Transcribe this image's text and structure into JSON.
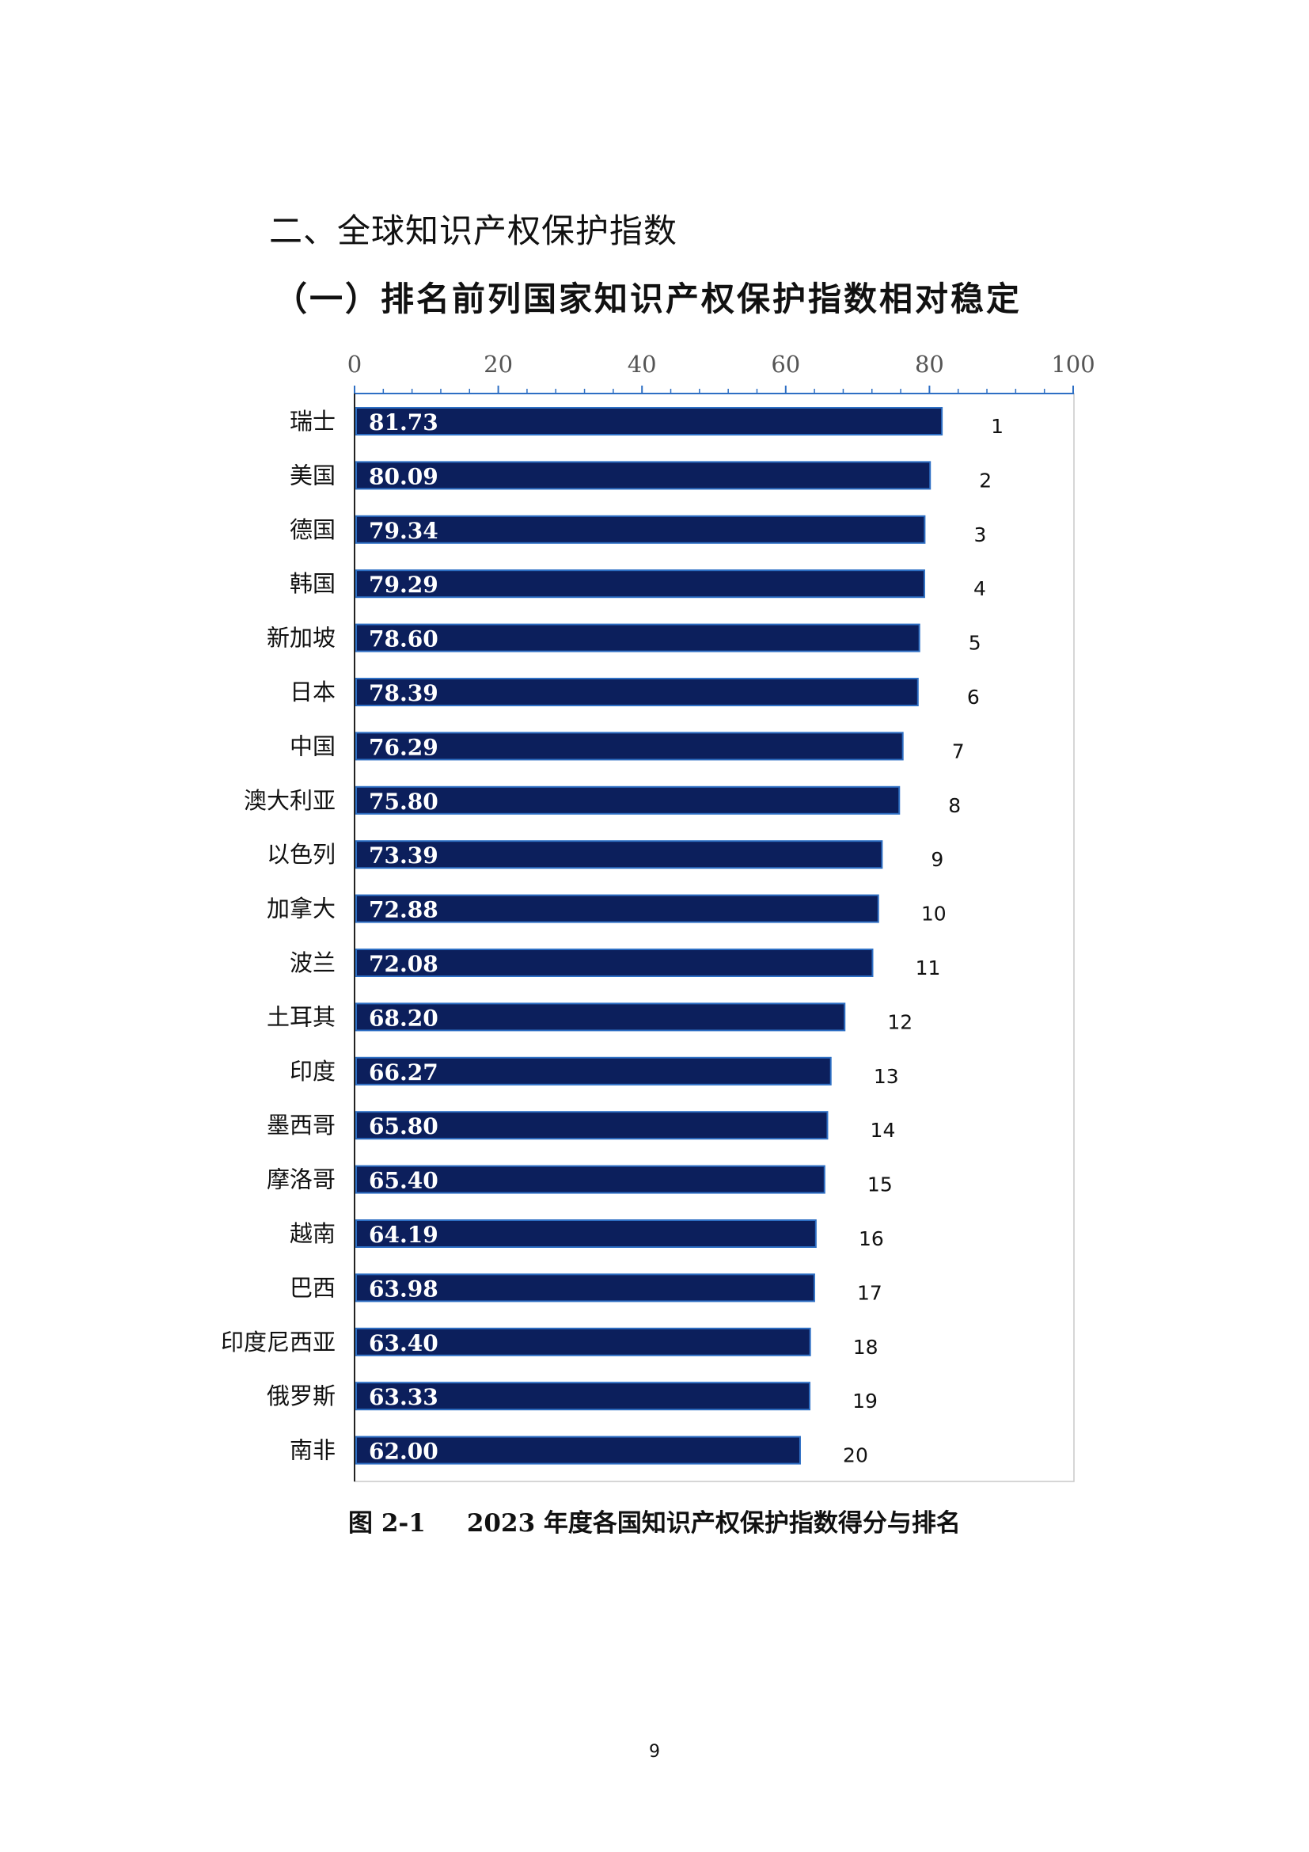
{
  "section_heading": "二、全球知识产权保护指数",
  "subsection_heading": "（一）排名前列国家知识产权保护指数相对稳定",
  "figure": {
    "number": "图 2-1",
    "title": "2023 年度各国知识产权保护指数得分与排名"
  },
  "page_number": "9",
  "colors": {
    "bar": "#0c1f5c",
    "bar_border": "#2e6fc4",
    "axis": "#2e6fc4",
    "plot_border": "#c8c8c8"
  },
  "chart_data": {
    "type": "bar",
    "orientation": "horizontal",
    "xlim": [
      0,
      100
    ],
    "x_ticks": [
      "0",
      "20",
      "40",
      "60",
      "80",
      "100"
    ],
    "x_tick_values": [
      0,
      20,
      40,
      60,
      80,
      100
    ],
    "grid": false,
    "categories": [
      "瑞士",
      "美国",
      "德国",
      "韩国",
      "新加坡",
      "日本",
      "中国",
      "澳大利亚",
      "以色列",
      "加拿大",
      "波兰",
      "土耳其",
      "印度",
      "墨西哥",
      "摩洛哥",
      "越南",
      "巴西",
      "印度尼西亚",
      "俄罗斯",
      "南非"
    ],
    "values": [
      81.73,
      80.09,
      79.34,
      79.29,
      78.6,
      78.39,
      76.29,
      75.8,
      73.39,
      72.88,
      72.08,
      68.2,
      66.27,
      65.8,
      65.4,
      64.19,
      63.98,
      63.4,
      63.33,
      62.0
    ],
    "value_labels": [
      "81.73",
      "80.09",
      "79.34",
      "79.29",
      "78.60",
      "78.39",
      "76.29",
      "75.80",
      "73.39",
      "72.88",
      "72.08",
      "68.20",
      "66.27",
      "65.80",
      "65.40",
      "64.19",
      "63.98",
      "63.40",
      "63.33",
      "62.00"
    ],
    "ranks": [
      "1",
      "2",
      "3",
      "4",
      "5",
      "6",
      "7",
      "8",
      "9",
      "10",
      "11",
      "12",
      "13",
      "14",
      "15",
      "16",
      "17",
      "18",
      "19",
      "20"
    ]
  }
}
